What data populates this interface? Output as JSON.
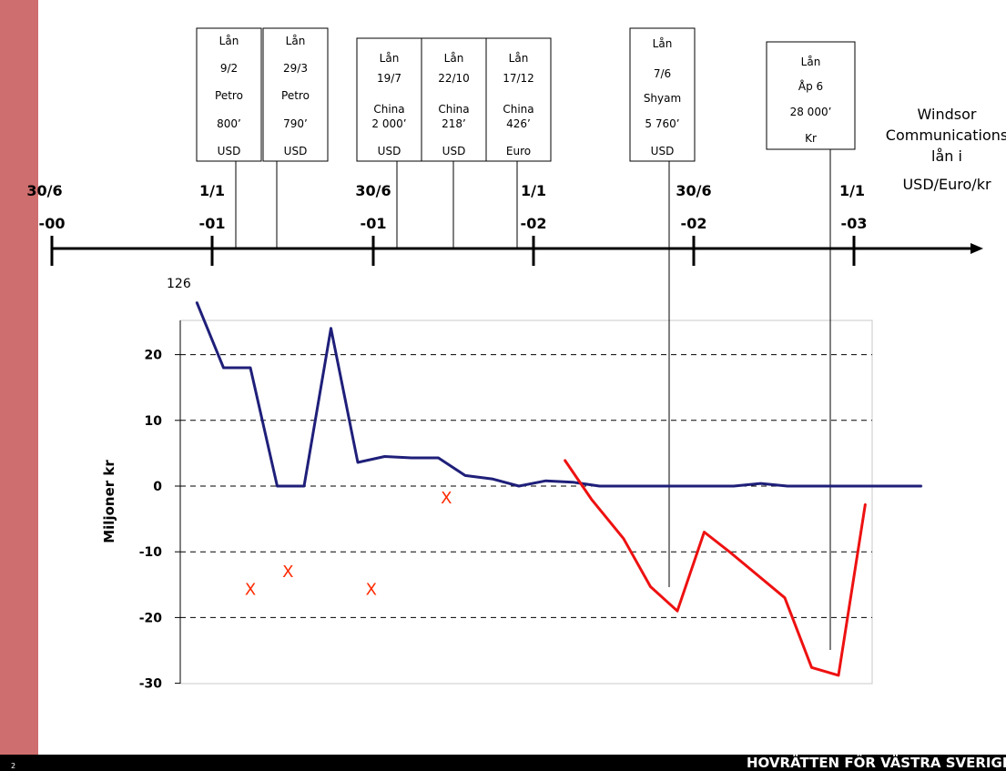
{
  "timeline": {
    "labels": [
      {
        "top": "30/6",
        "bottom": "-00"
      },
      {
        "top": "1/1",
        "bottom": "-01"
      },
      {
        "top": "30/6",
        "bottom": "-01"
      },
      {
        "top": "1/1",
        "bottom": "-02"
      },
      {
        "top": "30/6",
        "bottom": "-02"
      },
      {
        "top": "1/1",
        "bottom": "-03"
      }
    ]
  },
  "loans": [
    {
      "lines": [
        "Lån",
        "9/2",
        "Petro",
        "800’",
        "USD"
      ]
    },
    {
      "lines": [
        "Lån",
        "29/3",
        "Petro",
        "790’",
        "USD"
      ]
    },
    {
      "lines": [
        "Lån",
        "19/7",
        "China",
        "2 000’",
        "USD"
      ]
    },
    {
      "lines": [
        "Lån",
        "22/10",
        "China",
        "218’",
        "USD"
      ]
    },
    {
      "lines": [
        "Lån",
        "17/12",
        "China",
        "426’",
        "Euro"
      ]
    },
    {
      "lines": [
        "Lån",
        "7/6",
        "Shyam",
        "5 760’",
        "USD"
      ]
    },
    {
      "lines": [
        "Lån",
        "Åp 6",
        "28 000’",
        "Kr"
      ]
    }
  ],
  "side_title": [
    "Windsor",
    "Communications",
    "lån i",
    "USD/Euro/kr"
  ],
  "footer": {
    "page": "2",
    "org": "HOVRÄTTEN FÖR VÄSTRA SVERIGE"
  },
  "colors": {
    "sidebar": "#cf6e6e",
    "blue_series": "#1f1f7a",
    "red_series": "#ee1111",
    "x_markers": "#ff2a00"
  },
  "chart_data": {
    "type": "line",
    "ylabel": "Miljoner kr",
    "ylim": [
      -30,
      25
    ],
    "yticks": [
      20,
      10,
      0,
      -10,
      -20,
      -30
    ],
    "grid": "dashed horizontal",
    "annotation": "126",
    "series": [
      {
        "color": "#1f1f7a",
        "points": [
          [
            0,
            28
          ],
          [
            1,
            18
          ],
          [
            2,
            18
          ],
          [
            3,
            0
          ],
          [
            4,
            0
          ],
          [
            5,
            24
          ],
          [
            6,
            3.6
          ],
          [
            7,
            4.5
          ],
          [
            8,
            4.3
          ],
          [
            9,
            4.3
          ],
          [
            10,
            1.6
          ],
          [
            11,
            1.1
          ],
          [
            12,
            0
          ],
          [
            13,
            0.8
          ],
          [
            14,
            0.6
          ],
          [
            15,
            0
          ],
          [
            16,
            0
          ],
          [
            17,
            0
          ],
          [
            18,
            0
          ],
          [
            19,
            0
          ],
          [
            20,
            0
          ],
          [
            21,
            0.4
          ],
          [
            22,
            0
          ],
          [
            23,
            0
          ],
          [
            24,
            0
          ],
          [
            25,
            0
          ],
          [
            26,
            0
          ],
          [
            27,
            0
          ]
        ]
      },
      {
        "color": "#ee1111",
        "points": [
          [
            13.7,
            4
          ],
          [
            14.7,
            -2
          ],
          [
            15.9,
            -8
          ],
          [
            16.9,
            -15.3
          ],
          [
            17.9,
            -19
          ],
          [
            18.9,
            -7
          ],
          [
            19.9,
            -10.2
          ],
          [
            21.9,
            -17
          ],
          [
            22.9,
            -27.6
          ],
          [
            23.9,
            -28.8
          ],
          [
            24.9,
            -2.7
          ]
        ]
      }
    ],
    "x_markers": [
      [
        2,
        -15.7
      ],
      [
        3.4,
        -13
      ],
      [
        6.5,
        -15.7
      ],
      [
        9.3,
        -1.8
      ]
    ]
  }
}
